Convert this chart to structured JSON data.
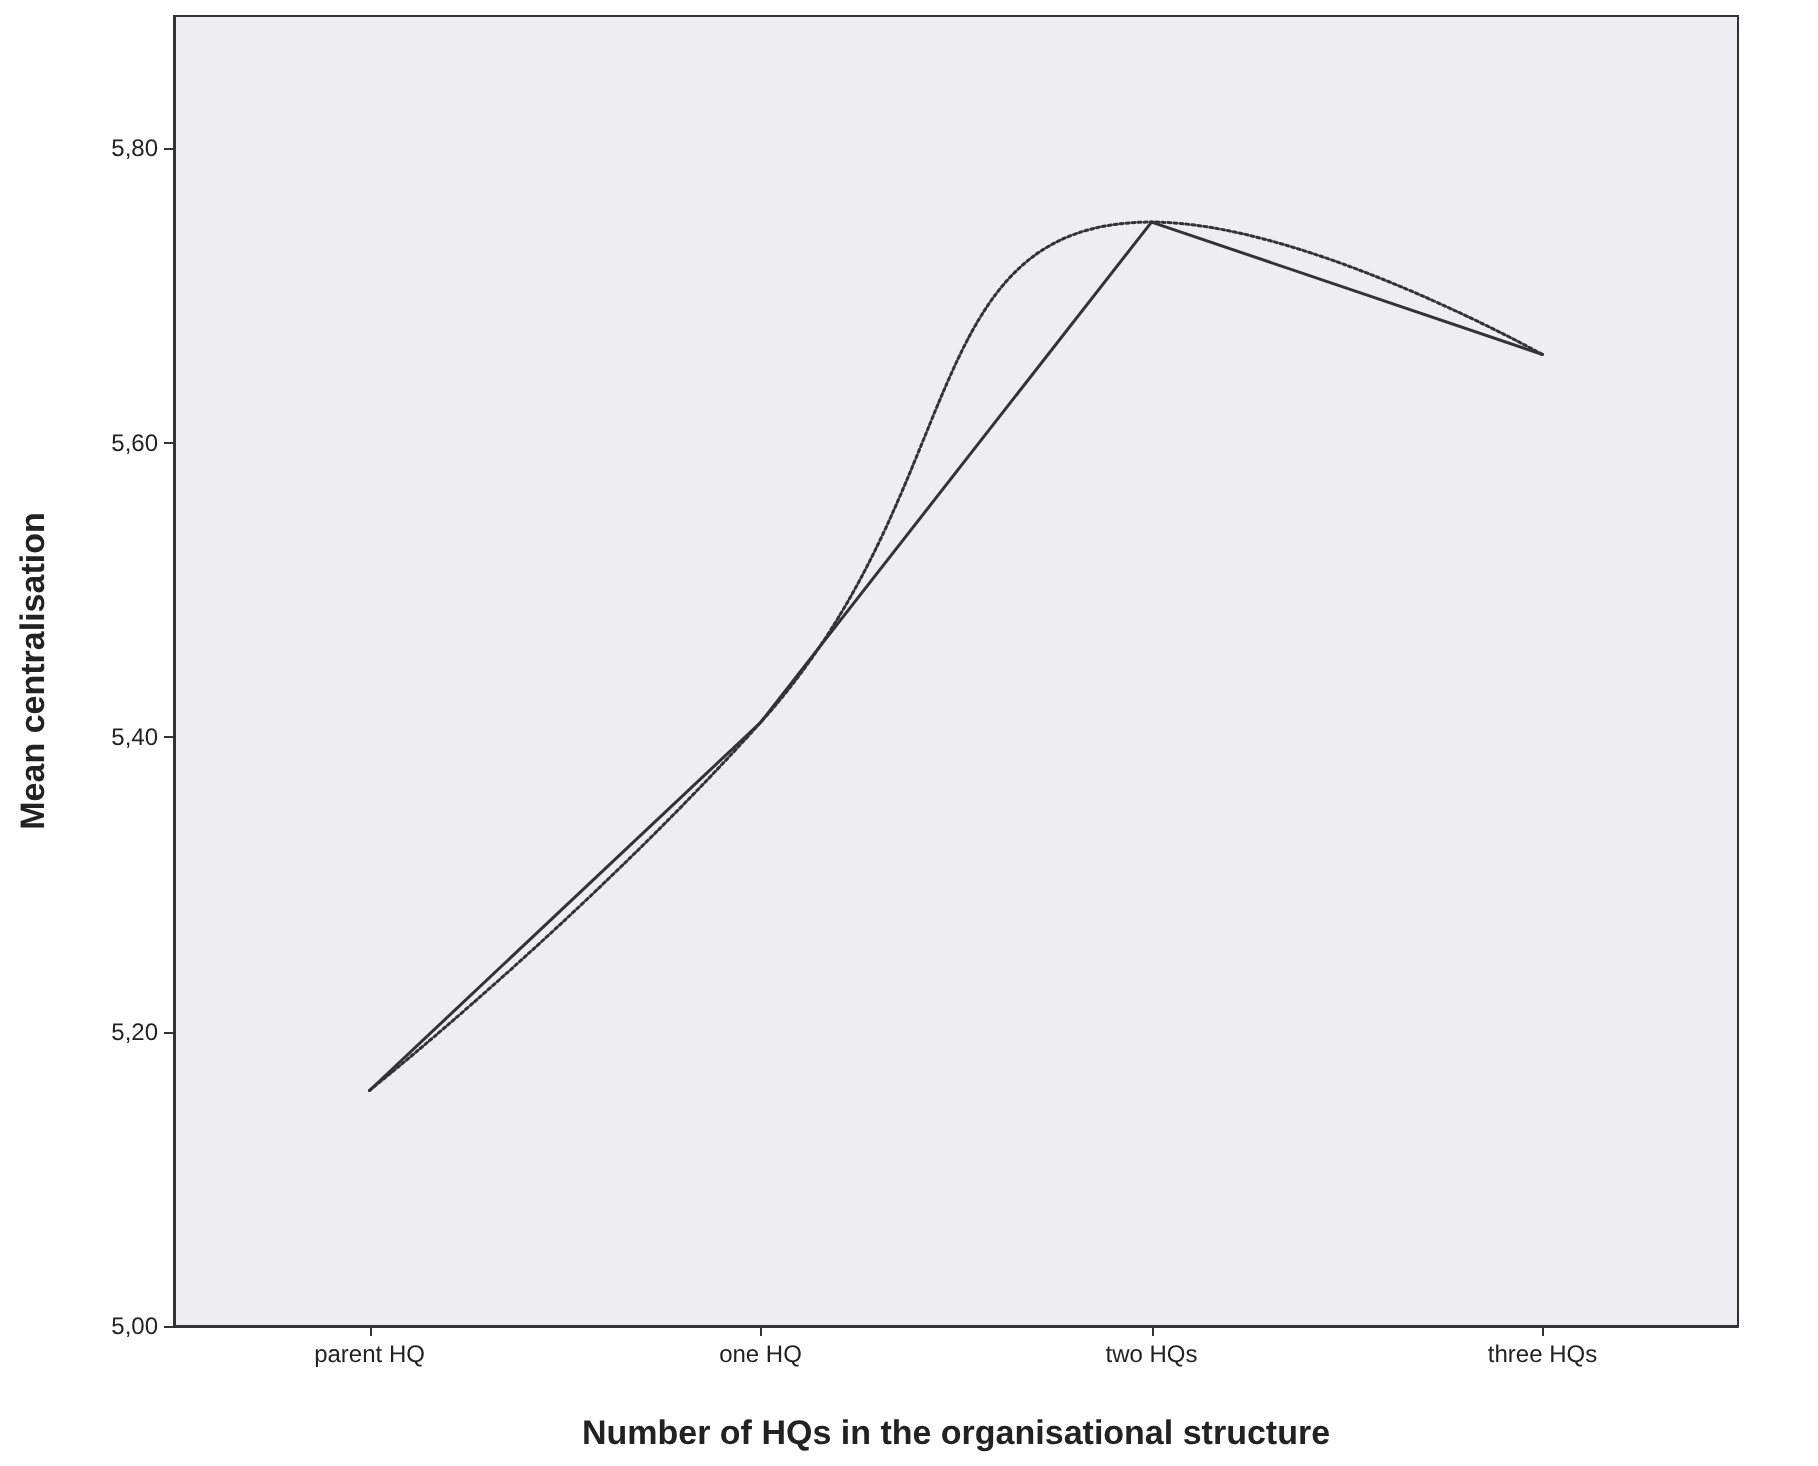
{
  "chart_data": {
    "type": "line",
    "xlabel": "Number of HQs in the organisational structure",
    "ylabel": "Mean centralisation",
    "categories": [
      "parent HQ",
      "one HQ",
      "two HQs",
      "three HQs"
    ],
    "ylim": [
      5,
      5.89
    ],
    "yticks": [
      {
        "value": 5,
        "label": "5,00"
      },
      {
        "value": 5.2,
        "label": "5,20"
      },
      {
        "value": 5.4,
        "label": "5,40"
      },
      {
        "value": 5.6,
        "label": "5,60"
      },
      {
        "value": 5.8,
        "label": "5,80"
      }
    ],
    "series": [
      {
        "color": "#333333",
        "values": [
          5.16,
          5.41,
          5.75,
          5.66
        ],
        "line_style": "solid"
      },
      {
        "type": "line",
        "color": "#333333",
        "line_style": "dotted",
        "x": [
          "parent HQ",
          "one HQ",
          "two HQs",
          "three HQs"
        ],
        "values": [
          5.16,
          5.41,
          5.75,
          5.66
        ]
      }
    ],
    "marker": "none",
    "grid": false
  }
}
